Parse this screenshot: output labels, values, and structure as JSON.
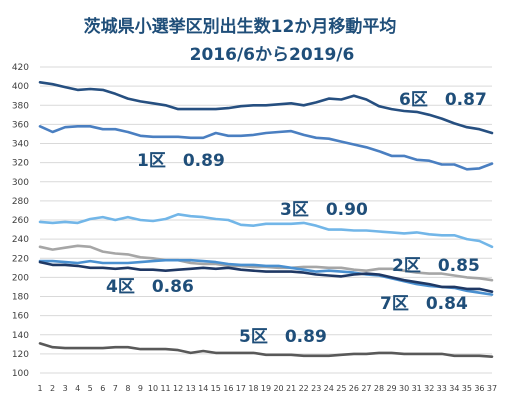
{
  "chart_data": {
    "type": "line",
    "title_line1": "茨城県小選挙区別出生数12か月移動平均",
    "title_line2": "2016/6から2019/6",
    "x": [
      1,
      2,
      3,
      4,
      5,
      6,
      7,
      8,
      9,
      10,
      11,
      12,
      13,
      14,
      15,
      16,
      17,
      18,
      19,
      20,
      21,
      22,
      23,
      24,
      25,
      26,
      27,
      28,
      29,
      30,
      31,
      32,
      33,
      34,
      35,
      36,
      37
    ],
    "ylim": [
      100,
      420
    ],
    "yticks": [
      100,
      120,
      140,
      160,
      180,
      200,
      220,
      240,
      260,
      280,
      300,
      320,
      340,
      360,
      380,
      400,
      420
    ],
    "grid": true,
    "series": [
      {
        "id": "d6",
        "name": "6区　0.87",
        "color": "#264f80",
        "values": [
          404,
          402,
          399,
          396,
          397,
          396,
          392,
          387,
          384,
          382,
          380,
          376,
          376,
          376,
          376,
          377,
          379,
          380,
          380,
          381,
          382,
          380,
          383,
          387,
          386,
          390,
          386,
          379,
          376,
          374,
          373,
          370,
          366,
          361,
          357,
          355,
          351
        ]
      },
      {
        "id": "d1",
        "name": "1区　0.89",
        "color": "#4a7fc1",
        "values": [
          358,
          352,
          357,
          358,
          358,
          355,
          355,
          352,
          348,
          347,
          347,
          347,
          346,
          346,
          351,
          348,
          348,
          349,
          351,
          352,
          353,
          349,
          346,
          345,
          342,
          339,
          336,
          332,
          327,
          327,
          323,
          322,
          318,
          318,
          313,
          314,
          319
        ]
      },
      {
        "id": "d3",
        "name": "3区　0.90",
        "color": "#72b6e8",
        "values": [
          258,
          257,
          258,
          257,
          261,
          263,
          260,
          263,
          260,
          259,
          261,
          266,
          264,
          263,
          261,
          260,
          255,
          254,
          256,
          256,
          256,
          257,
          254,
          250,
          250,
          249,
          249,
          248,
          247,
          246,
          247,
          245,
          244,
          244,
          240,
          238,
          232
        ]
      },
      {
        "id": "d2",
        "name": "2区　0.85",
        "color": "#a6a6a6",
        "values": [
          232,
          229,
          231,
          233,
          232,
          227,
          225,
          224,
          221,
          220,
          218,
          218,
          215,
          214,
          214,
          212,
          212,
          211,
          211,
          210,
          210,
          211,
          211,
          210,
          210,
          208,
          207,
          209,
          209,
          207,
          205,
          204,
          204,
          202,
          200,
          199,
          197
        ]
      },
      {
        "id": "d7",
        "name": "7区　0.84",
        "color": "#4a90d0",
        "values": [
          217,
          217,
          216,
          215,
          217,
          215,
          215,
          215,
          216,
          217,
          218,
          218,
          218,
          217,
          216,
          214,
          213,
          213,
          212,
          212,
          210,
          208,
          206,
          207,
          206,
          205,
          203,
          202,
          199,
          196,
          193,
          191,
          190,
          189,
          186,
          184,
          182
        ]
      },
      {
        "id": "d4",
        "name": "4区　0.86",
        "color": "#1f3864",
        "values": [
          216,
          213,
          213,
          212,
          210,
          210,
          209,
          210,
          208,
          208,
          207,
          208,
          209,
          210,
          209,
          210,
          208,
          207,
          206,
          206,
          206,
          205,
          203,
          202,
          201,
          203,
          204,
          203,
          200,
          197,
          195,
          193,
          190,
          190,
          188,
          188,
          185
        ]
      },
      {
        "id": "d5",
        "name": "5区　0.89",
        "color": "#595959",
        "values": [
          131,
          127,
          126,
          126,
          126,
          126,
          127,
          127,
          125,
          125,
          125,
          124,
          121,
          123,
          121,
          121,
          121,
          121,
          119,
          119,
          119,
          118,
          118,
          118,
          119,
          120,
          120,
          121,
          121,
          120,
          120,
          120,
          120,
          118,
          118,
          118,
          117
        ]
      }
    ]
  }
}
